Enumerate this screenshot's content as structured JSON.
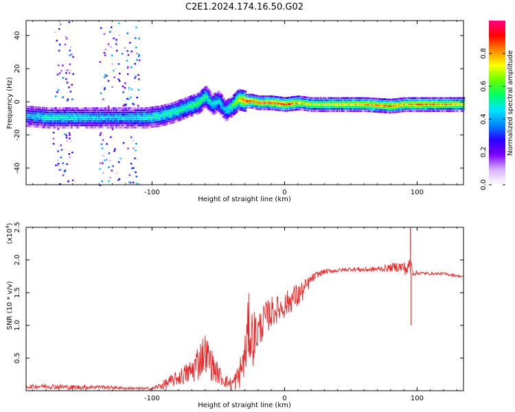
{
  "figure": {
    "title": "C2E1.2024.174.16.50.G02"
  },
  "chart_data": [
    {
      "type": "heatmap",
      "title": "C2E1.2024.174.16.50.G02",
      "xlabel": "Height of straight line (km)",
      "ylabel": "Frequency (Hz)",
      "xlim": [
        -195,
        135
      ],
      "ylim": [
        -50,
        49
      ],
      "x_ticks": [
        -100,
        0,
        100
      ],
      "x_tick_labels": [
        "-100",
        "0",
        "100"
      ],
      "y_ticks": [
        -40,
        -20,
        0,
        20,
        40
      ],
      "y_tick_labels": [
        "-40",
        "-20",
        "0",
        "20",
        "40"
      ],
      "colorbar": {
        "label": "Normalized spectral amplitude",
        "range": [
          0,
          1
        ],
        "ticks": [
          0.0,
          0.2,
          0.4,
          0.6,
          0.8
        ],
        "tick_labels": [
          "0.0",
          "0.2",
          "0.4",
          "0.6",
          "0.8"
        ],
        "colors": [
          "#ffffff",
          "#d9b3ff",
          "#7f00ff",
          "#2a00ff",
          "#0088ff",
          "#00e5ff",
          "#00ff66",
          "#66ff00",
          "#ffff00",
          "#ff8800",
          "#ff0000",
          "#ff0088"
        ]
      },
      "ridge": {
        "x": [
          -195,
          -180,
          -160,
          -140,
          -120,
          -105,
          -95,
          -85,
          -75,
          -65,
          -60,
          -55,
          -50,
          -45,
          -40,
          -35,
          -30,
          -25,
          -20,
          -10,
          0,
          10,
          20,
          40,
          60,
          80,
          90,
          100,
          120,
          135
        ],
        "y": [
          -8,
          -9,
          -9,
          -9,
          -9,
          -9,
          -8,
          -6,
          -3,
          0,
          4,
          -1,
          1,
          -5,
          -2,
          2,
          1,
          1,
          0,
          0,
          -1,
          0,
          -1,
          -1,
          -1,
          -2,
          -1,
          -1,
          -1,
          -1
        ],
        "peak": [
          0.45,
          0.5,
          0.5,
          0.45,
          0.45,
          0.5,
          0.55,
          0.55,
          0.55,
          0.6,
          0.55,
          0.5,
          0.5,
          0.45,
          0.6,
          0.75,
          0.9,
          0.85,
          0.8,
          0.85,
          0.9,
          0.8,
          0.7,
          0.75,
          0.8,
          0.85,
          0.8,
          0.85,
          0.8,
          0.75
        ]
      },
      "noise_bands": [
        {
          "x_from": -175,
          "x_to": -160,
          "density": 0.35
        },
        {
          "x_from": -140,
          "x_to": -110,
          "density": 0.6
        }
      ]
    },
    {
      "type": "line",
      "xlabel": "Height of straight line (km)",
      "ylabel": "SNR (10 * v/v)",
      "y_scale_label": "(x10",
      "y_scale_exponent": "4",
      "y_multiplier": 10000,
      "xlim": [
        -195,
        135
      ],
      "ylim": [
        0,
        2.5
      ],
      "x_ticks": [
        -100,
        0,
        100
      ],
      "x_tick_labels": [
        "-100",
        "0",
        "100"
      ],
      "y_ticks": [
        0.5,
        1.0,
        1.5,
        2.0,
        2.5
      ],
      "y_tick_labels": [
        "0.5",
        "1.0",
        "1.5",
        "2.0",
        "2.5"
      ],
      "color": "#ee2222",
      "series": [
        {
          "x": [
            -195,
            -180,
            -160,
            -140,
            -120,
            -100,
            -90,
            -80,
            -70,
            -65,
            -60,
            -55,
            -50,
            -45,
            -40,
            -35,
            -30,
            -27,
            -25,
            -20,
            -15,
            -10,
            -5,
            0,
            5,
            10,
            15,
            20,
            25,
            30,
            40,
            50,
            60,
            70,
            80,
            85,
            90,
            93,
            95,
            97,
            100,
            110,
            120,
            130,
            135
          ],
          "y": [
            0.06,
            0.07,
            0.05,
            0.06,
            0.04,
            0.03,
            0.1,
            0.2,
            0.3,
            0.45,
            0.6,
            0.4,
            0.25,
            0.15,
            0.1,
            0.2,
            0.5,
            1.0,
            0.8,
            0.9,
            1.1,
            1.2,
            1.25,
            1.3,
            1.4,
            1.45,
            1.55,
            1.7,
            1.78,
            1.82,
            1.84,
            1.86,
            1.85,
            1.86,
            1.88,
            1.9,
            1.88,
            1.85,
            2.0,
            1.8,
            1.8,
            1.79,
            1.79,
            1.76,
            1.74
          ]
        }
      ],
      "noise_amplitude": [
        0.03,
        0.04,
        0.04,
        0.03,
        0.02,
        0.02,
        0.08,
        0.12,
        0.2,
        0.3,
        0.3,
        0.25,
        0.15,
        0.1,
        0.1,
        0.2,
        0.35,
        0.5,
        0.5,
        0.3,
        0.25,
        0.25,
        0.2,
        0.2,
        0.2,
        0.2,
        0.15,
        0.08,
        0.05,
        0.04,
        0.03,
        0.03,
        0.04,
        0.04,
        0.06,
        0.08,
        0.1,
        0.12,
        0.05,
        0.05,
        0.03,
        0.02,
        0.02,
        0.02,
        0.02
      ],
      "spikes": [
        {
          "x": 95,
          "y": 2.5
        },
        {
          "x": 95.5,
          "y": 1.0
        }
      ]
    }
  ]
}
